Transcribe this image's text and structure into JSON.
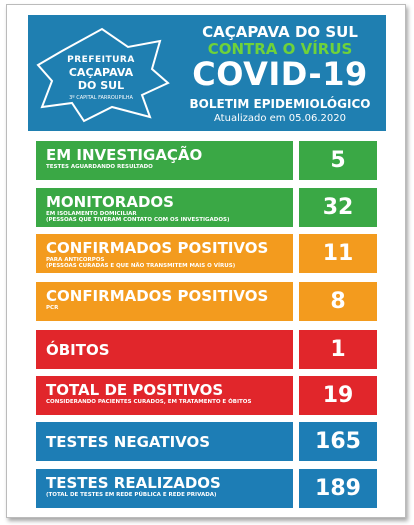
{
  "header": {
    "logo": {
      "line1": "PREFEITURA",
      "line2": "CAÇAPAVA",
      "line3": "DO SUL",
      "line4": "3º CAPITAL FARROUPILHA"
    },
    "city": "CAÇAPAVA DO SUL",
    "slogan": "CONTRA O VÍRUS",
    "title": "COVID-19",
    "subtitle": "BOLETIM EPIDEMIOLÓGICO",
    "updated": "Atualizado em 05.06.2020"
  },
  "rows": [
    {
      "label": "EM INVESTIGAÇÃO",
      "notes": [
        "TESTES AGUARDANDO RESULTADO"
      ],
      "value": 5,
      "color": "#3aa845"
    },
    {
      "label": "MONITORADOS",
      "notes": [
        "EM ISOLAMENTO DOMICILIAR",
        "(PESSOAS QUE TIVERAM CONTATO COM OS INVESTIGADOS)"
      ],
      "value": 32,
      "color": "#3aa845"
    },
    {
      "label": "CONFIRMADOS POSITIVOS",
      "notes": [
        "PARA ANTICORPOS",
        "(PESSOAS CURADAS E QUE NÃO TRANSMITEM MAIS O VÍRUS)"
      ],
      "value": 11,
      "color": "#f39b1e"
    },
    {
      "label": "CONFIRMADOS POSITIVOS",
      "notes": [
        "PCR"
      ],
      "value": 8,
      "color": "#f39b1e"
    },
    {
      "label": "ÓBITOS",
      "notes": [],
      "value": 1,
      "color": "#e1262b"
    },
    {
      "label": "TOTAL DE POSITIVOS",
      "notes": [
        "CONSIDERANDO PACIENTES CURADOS, EM TRATAMENTO E ÓBITOS"
      ],
      "value": 19,
      "color": "#e1262b"
    },
    {
      "label": "TESTES NEGATIVOS",
      "notes": [],
      "value": 165,
      "color": "#1d7db5"
    },
    {
      "label": "TESTES REALIZADOS",
      "notes": [
        "(TOTAL DE TESTES  EM REDE PÚBLICA E REDE PRIVADA)"
      ],
      "value": 189,
      "color": "#1d7db5"
    }
  ]
}
